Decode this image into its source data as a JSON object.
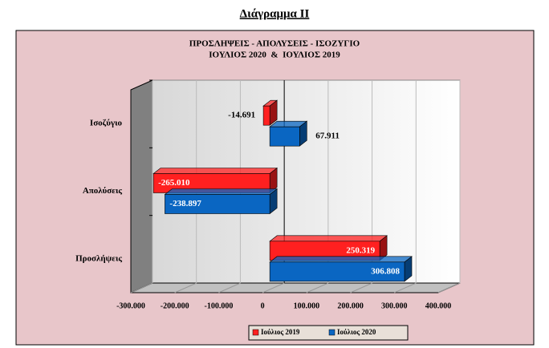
{
  "chart_data": {
    "type": "bar3d-horizontal",
    "heading": "Διάγραμμα ΙΙ",
    "title": "ΠΡΟΣΛΗΨΕΙΣ - ΑΠΟΛΥΣΕΙΣ - ΙΣΟΖΥΓΙΟ",
    "subtitle": "ΙΟΥΛΙΟΣ 2020  &  ΙΟΥΛΙΟΣ 2019",
    "categories": [
      "Προσλήψεις",
      "Απολύσεις",
      "Ισοζύγιο"
    ],
    "series": [
      {
        "name": "Ιούλιος 2019",
        "color": "#ff2020",
        "values": [
          250319,
          -265010,
          -14691
        ],
        "value_labels": [
          "250.319",
          "-265.010",
          "-14.691"
        ]
      },
      {
        "name": "Ιούλιος 2020",
        "color": "#0a66c2",
        "values": [
          306808,
          -238897,
          67911
        ],
        "value_labels": [
          "306.808",
          "-238.897",
          "67.911"
        ]
      }
    ],
    "xlim": [
      -300000,
      400000
    ],
    "xticks": [
      {
        "value": -300000,
        "label": "-300.000"
      },
      {
        "value": -200000,
        "label": "-200.000"
      },
      {
        "value": -100000,
        "label": "-100.000"
      },
      0,
      {
        "value": 100000,
        "label": "100.000"
      },
      {
        "value": 200000,
        "label": "200.000"
      },
      {
        "value": 300000,
        "label": "300.000"
      },
      {
        "value": 400000,
        "label": "400.000"
      }
    ],
    "grid": true,
    "legend": "bottom"
  }
}
